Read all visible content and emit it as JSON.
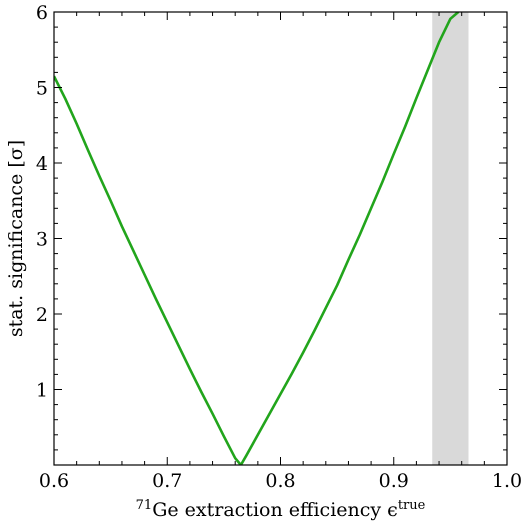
{
  "chart_data": {
    "type": "line",
    "title": "",
    "xlabel_sup": "71",
    "xlabel_main": "Ge extraction efficiency ϵ",
    "xlabel_sup_end": "true",
    "ylabel": "stat. significance [σ]",
    "xlim": [
      0.6,
      1.0
    ],
    "ylim": [
      0,
      6
    ],
    "xticks": [
      "0.6",
      "0.7",
      "0.8",
      "0.9",
      "1.0"
    ],
    "yticks": [
      "1",
      "2",
      "3",
      "4",
      "5",
      "6"
    ],
    "line_color": "#22a51c",
    "band_color": "#d9d9d9",
    "shaded_band": [
      0.934,
      0.966
    ],
    "series": [
      {
        "x": [
          0.6,
          0.61,
          0.62,
          0.63,
          0.64,
          0.65,
          0.66,
          0.67,
          0.68,
          0.69,
          0.7,
          0.71,
          0.72,
          0.73,
          0.74,
          0.75,
          0.76,
          0.765,
          0.77,
          0.78,
          0.79,
          0.8,
          0.81,
          0.82,
          0.83,
          0.84,
          0.85,
          0.86,
          0.87,
          0.88,
          0.89,
          0.9,
          0.91,
          0.92,
          0.93,
          0.94,
          0.95,
          0.957
        ],
        "y": [
          5.15,
          4.85,
          4.52,
          4.17,
          3.83,
          3.5,
          3.16,
          2.84,
          2.52,
          2.2,
          1.89,
          1.58,
          1.27,
          0.97,
          0.68,
          0.38,
          0.09,
          0.0,
          0.13,
          0.4,
          0.67,
          0.94,
          1.21,
          1.49,
          1.78,
          2.08,
          2.38,
          2.72,
          3.05,
          3.4,
          3.75,
          4.12,
          4.48,
          4.86,
          5.23,
          5.6,
          5.91,
          6.0
        ]
      }
    ]
  }
}
